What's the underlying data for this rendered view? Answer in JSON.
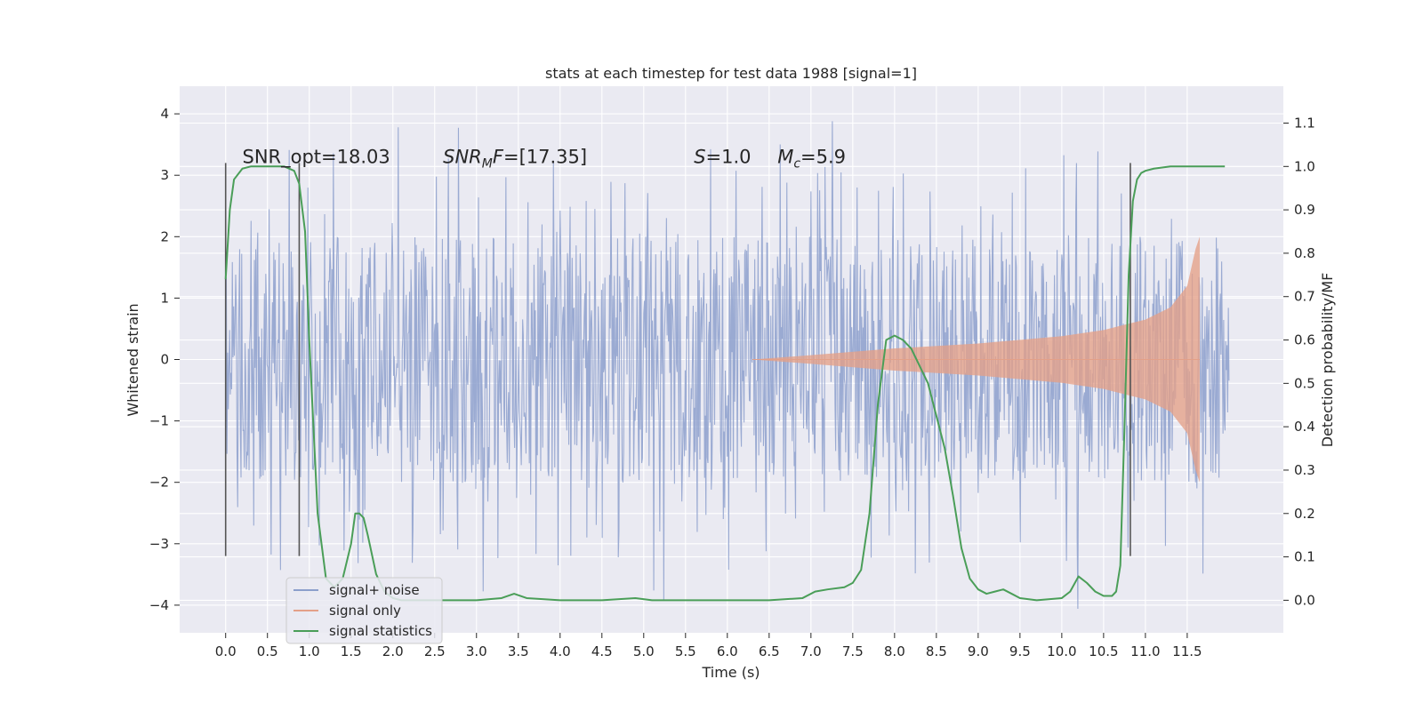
{
  "chart_data": {
    "type": "line",
    "title": "stats at each timestep for test data 1988 [signal=1]",
    "xlabel": "Time (s)",
    "ylabel": "Whitened strain",
    "y2label": "Detection probability/MF",
    "xlim": [
      -0.55,
      12.65
    ],
    "ylim": [
      -4.45,
      4.45
    ],
    "y2lim": [
      -0.075,
      1.185
    ],
    "grid": true,
    "x_ticks": [
      "0.0",
      "0.5",
      "1.0",
      "1.5",
      "2.0",
      "2.5",
      "3.0",
      "3.5",
      "4.0",
      "4.5",
      "5.0",
      "5.5",
      "6.0",
      "6.5",
      "7.0",
      "7.5",
      "8.0",
      "8.5",
      "9.0",
      "9.5",
      "10.0",
      "10.5",
      "11.0",
      "11.5"
    ],
    "y_ticks": [
      "4",
      "3",
      "2",
      "1",
      "0",
      "−1",
      "−2",
      "−3",
      "−4"
    ],
    "y2_ticks": [
      "1.1",
      "1.0",
      "0.9",
      "0.8",
      "0.7",
      "0.6",
      "0.5",
      "0.4",
      "0.3",
      "0.2",
      "0.1",
      "0.0"
    ],
    "annotations": [
      {
        "text": "SNR_opt=18.03",
        "x": 0.2,
        "y": 3.3
      },
      {
        "text": "SNR_MF=[17.35]",
        "x": 2.6,
        "y": 3.3
      },
      {
        "text": "S=1.0",
        "x": 5.6,
        "y": 3.3
      },
      {
        "text": "M_c=5.9",
        "x": 6.6,
        "y": 3.3
      }
    ],
    "vlines": {
      "x": [
        0.0,
        0.88,
        10.82
      ],
      "ymin": -3.2,
      "ymax": 3.2
    },
    "legend": {
      "placement": "lower-left",
      "entries": [
        {
          "label": "signal+ noise",
          "color": "#8c9fcc"
        },
        {
          "label": "signal only",
          "color": "#e4a088"
        },
        {
          "label": "signal statistics",
          "color": "#4a9e58"
        }
      ]
    },
    "series": [
      {
        "name": "signal+ noise",
        "axis": "left",
        "x_range": [
          0.0,
          12.0
        ],
        "amplitude_band": [
          -2.0,
          2.0
        ],
        "peak_range": [
          -4.1,
          4.1
        ],
        "color": "#8c9fcc"
      },
      {
        "name": "signal only",
        "axis": "left",
        "envelope_x": [
          6.3,
          7.0,
          8.0,
          9.0,
          10.0,
          10.5,
          11.0,
          11.3,
          11.5,
          11.6,
          11.65
        ],
        "envelope_y": [
          0.0,
          0.07,
          0.18,
          0.26,
          0.38,
          0.48,
          0.65,
          0.85,
          1.2,
          1.8,
          2.0
        ],
        "color": "#e4a088"
      },
      {
        "name": "signal statistics",
        "axis": "right",
        "x": [
          0.0,
          0.05,
          0.1,
          0.2,
          0.3,
          0.5,
          0.7,
          0.82,
          0.88,
          0.95,
          1.0,
          1.05,
          1.1,
          1.2,
          1.3,
          1.4,
          1.5,
          1.55,
          1.6,
          1.65,
          1.7,
          1.8,
          1.9,
          2.0,
          2.1,
          2.3,
          2.6,
          3.0,
          3.3,
          3.45,
          3.6,
          4.0,
          4.5,
          4.9,
          5.1,
          5.5,
          6.0,
          6.5,
          6.9,
          7.05,
          7.2,
          7.4,
          7.5,
          7.6,
          7.7,
          7.8,
          7.9,
          8.0,
          8.1,
          8.2,
          8.4,
          8.6,
          8.7,
          8.8,
          8.9,
          9.0,
          9.1,
          9.2,
          9.3,
          9.4,
          9.5,
          9.7,
          10.0,
          10.1,
          10.2,
          10.3,
          10.4,
          10.5,
          10.6,
          10.65,
          10.7,
          10.75,
          10.8,
          10.85,
          10.9,
          10.95,
          11.0,
          11.1,
          11.3,
          11.6,
          11.95
        ],
        "y": [
          0.74,
          0.9,
          0.97,
          0.995,
          1.0,
          1.0,
          1.0,
          0.99,
          0.96,
          0.85,
          0.6,
          0.4,
          0.2,
          0.05,
          0.03,
          0.05,
          0.13,
          0.2,
          0.2,
          0.19,
          0.15,
          0.06,
          0.02,
          0.005,
          0.0,
          0.0,
          0.0,
          0.0,
          0.005,
          0.015,
          0.005,
          0.0,
          0.0,
          0.005,
          0.0,
          0.0,
          0.0,
          0.0,
          0.005,
          0.02,
          0.025,
          0.03,
          0.04,
          0.07,
          0.2,
          0.45,
          0.6,
          0.61,
          0.6,
          0.58,
          0.5,
          0.35,
          0.24,
          0.12,
          0.05,
          0.025,
          0.015,
          0.02,
          0.025,
          0.015,
          0.005,
          0.0,
          0.005,
          0.02,
          0.055,
          0.04,
          0.02,
          0.01,
          0.01,
          0.02,
          0.08,
          0.4,
          0.75,
          0.92,
          0.97,
          0.985,
          0.99,
          0.995,
          1.0,
          1.0,
          1.0
        ],
        "color": "#4a9e58"
      }
    ]
  }
}
